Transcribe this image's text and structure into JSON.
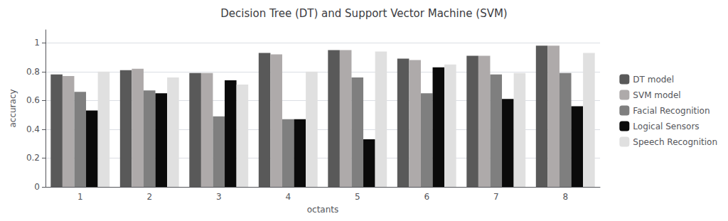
{
  "chart_data": {
    "type": "bar",
    "title": "Decision Tree (DT) and Support Vector Machine (SVM)",
    "xlabel": "octants",
    "ylabel": "accuracy",
    "categories": [
      1,
      2,
      3,
      4,
      5,
      6,
      7,
      8
    ],
    "series": [
      {
        "name": "DT model",
        "color": "#595959",
        "values": [
          0.78,
          0.81,
          0.79,
          0.93,
          0.95,
          0.89,
          0.91,
          0.98
        ]
      },
      {
        "name": "SVM model",
        "color": "#AEAAAA",
        "values": [
          0.77,
          0.82,
          0.79,
          0.92,
          0.95,
          0.88,
          0.91,
          0.98
        ]
      },
      {
        "name": "Facial Recognition",
        "color": "#7F7F7F",
        "values": [
          0.66,
          0.67,
          0.49,
          0.47,
          0.76,
          0.65,
          0.78,
          0.79
        ]
      },
      {
        "name": "Logical Sensors",
        "color": "#0A0A0A",
        "values": [
          0.53,
          0.65,
          0.74,
          0.47,
          0.33,
          0.83,
          0.61,
          0.56
        ]
      },
      {
        "name": "Speech Recognition",
        "color": "#E0E0E0",
        "values": [
          0.8,
          0.76,
          0.71,
          0.8,
          0.94,
          0.85,
          0.79,
          0.93
        ]
      }
    ],
    "ylim": [
      0,
      1.09
    ],
    "yticks": [
      0,
      0.2,
      0.4,
      0.6,
      0.8,
      1
    ],
    "grid": true,
    "legend": "right"
  }
}
